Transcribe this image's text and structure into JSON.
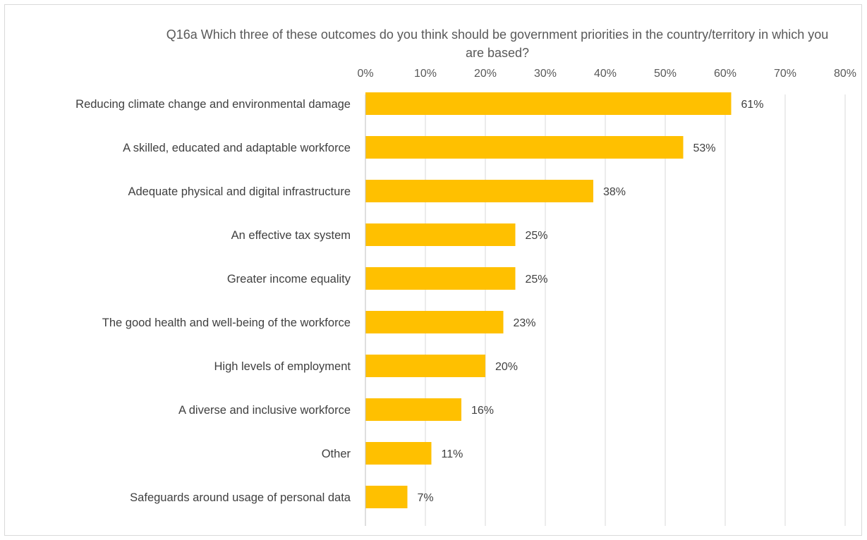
{
  "chart_data": {
    "type": "bar",
    "orientation": "horizontal",
    "title": "Q16a Which three of these outcomes do you think should be government  priorities in the country/territory in which you are based?",
    "categories": [
      "Reducing climate change and environmental damage",
      "A skilled, educated and adaptable workforce",
      "Adequate physical and digital infrastructure",
      "An effective tax system",
      "Greater income equality",
      "The good health and well-being of the workforce",
      "High levels of employment",
      "A diverse and inclusive workforce",
      "Other",
      "Safeguards around usage of personal data"
    ],
    "values": [
      61,
      53,
      38,
      25,
      25,
      23,
      20,
      16,
      11,
      7
    ],
    "data_labels": [
      "61%",
      "53%",
      "38%",
      "25%",
      "25%",
      "23%",
      "20%",
      "16%",
      "11%",
      "7%"
    ],
    "x_ticks": [
      "0%",
      "10%",
      "20%",
      "30%",
      "40%",
      "50%",
      "60%",
      "70%",
      "80%"
    ],
    "xlim": [
      0,
      80
    ],
    "x_axis_position": "top",
    "grid": true,
    "bar_color": "#FFC000",
    "gridline_color": "#d9d9d9"
  }
}
